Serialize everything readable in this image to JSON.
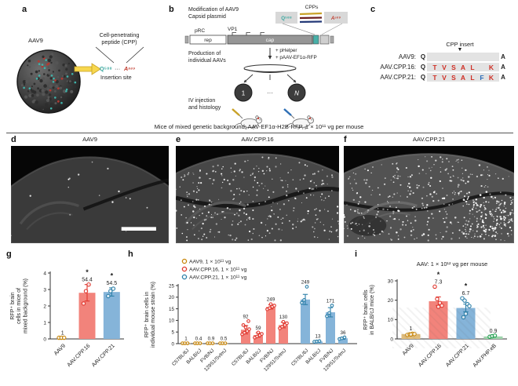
{
  "panels": {
    "a": {
      "letter": "a",
      "virus": "AAV9",
      "cpp": [
        "Cell-penetrating",
        "peptide (CPP)"
      ],
      "q": "Q⁵⁸⁸",
      "dots": "···",
      "a_res": "A⁵⁸⁹",
      "caption": "Insertion site"
    },
    "b": {
      "letter": "b",
      "step1": [
        "Modification of AAV9",
        "Capsid plasmid"
      ],
      "cpps": "CPPs",
      "q": "Q⁵⁸⁸",
      "a_res": "A⁵⁸⁹",
      "prc": "pRC",
      "vp1": "VP1",
      "rep": "rep",
      "cap": "cap",
      "helper": "+ pHelper",
      "aav_rfp": "+ pAAV-EF1α-RFP",
      "step2": [
        "Production of",
        "individual AAVs"
      ],
      "virus_1": "1",
      "virus_dots": "···",
      "virus_n": "N",
      "step3": [
        "IV injection",
        "and histology"
      ]
    },
    "c": {
      "letter": "c",
      "header": "CPP insert",
      "marker": "▼",
      "letter_colors": {
        "red": "#cf2e24",
        "blue": "#2b6cb8"
      },
      "rows": [
        {
          "name": "AAV9:",
          "left": "Q",
          "letters": [],
          "right": "A"
        },
        {
          "name": "AAV.CPP.16:",
          "left": "Q",
          "letters": [
            [
              "T",
              "red"
            ],
            [
              "V",
              "red"
            ],
            [
              "S",
              "red"
            ],
            [
              "A",
              "red"
            ],
            [
              "L",
              "red"
            ],
            [
              "",
              ""
            ],
            [
              "K",
              "red"
            ]
          ],
          "right": "A"
        },
        {
          "name": "AAV.CPP.21:",
          "left": "Q",
          "letters": [
            [
              "T",
              "red"
            ],
            [
              "V",
              "red"
            ],
            [
              "S",
              "red"
            ],
            [
              "A",
              "red"
            ],
            [
              "L",
              "red"
            ],
            [
              "F",
              "blue"
            ],
            [
              "K",
              "red"
            ]
          ],
          "right": "A"
        }
      ]
    },
    "def_title": "Mice of mixed genetic background; AAV-EF1α-H2B-RFP, 1 × 10¹¹ vg per mouse",
    "d": {
      "letter": "d",
      "title": "AAV9"
    },
    "e": {
      "letter": "e",
      "title": "AAV.CPP.16"
    },
    "f": {
      "letter": "f",
      "title": "AAV.CPP.21"
    }
  },
  "chart_data": [
    {
      "id": "g",
      "type": "bar",
      "letter": "g",
      "ylabel": "RFP⁺ brain\ncells in mice of\nmixed background (%)",
      "ylim": [
        0,
        4
      ],
      "yticks": [
        0,
        1,
        2,
        3,
        4
      ],
      "bars": [
        {
          "label": "AAV9",
          "value": 0,
          "fold": "1",
          "sig": "",
          "color": "#e0bd7d",
          "stroke": "#c8860a",
          "err": 0,
          "points": [
            0.07,
            0.07,
            0.07
          ]
        },
        {
          "label": "AAV.CPP.16",
          "value": 2.8,
          "fold": "54.4",
          "sig": "*",
          "color": "#f2837b",
          "stroke": "#e0372e",
          "err": 0.5,
          "points": [
            2.15,
            2.9,
            3.3
          ]
        },
        {
          "label": "AAV.CPP.21",
          "value": 2.85,
          "fold": "54.5",
          "sig": "*",
          "color": "#85b4d9",
          "stroke": "#2b7fa8",
          "err": 0.25,
          "points": [
            2.6,
            2.9,
            3.05
          ]
        }
      ]
    },
    {
      "id": "h",
      "type": "grouped-bar",
      "letter": "h",
      "ylabel": "RFP⁺ brain cells in\nindividual mouse strain (%)",
      "ylim": [
        0,
        25
      ],
      "yticks": [
        0,
        5,
        10,
        15,
        20,
        25
      ],
      "legend": [
        {
          "label": "AAV9, 1 × 10¹¹ vg",
          "color": "#c8860a"
        },
        {
          "label": "AAV.CPP.16, 1 × 10¹¹ vg",
          "color": "#e0372e"
        },
        {
          "label": "AAV.CPP.21, 1 × 10¹¹ vg",
          "color": "#2b7fa8"
        }
      ],
      "strains": [
        "C57BL/6J",
        "BALB/cJ",
        "FVB/NJ",
        "129S1/SvImJ"
      ],
      "groups": [
        {
          "name": "AAV9",
          "color": "#e0bd7d",
          "stroke": "#c8860a",
          "values": [
            0.1,
            0.06,
            0.09,
            0.06
          ],
          "folds": [
            "1",
            "0.4",
            "0.9",
            "0.5"
          ],
          "errs": [
            0,
            0,
            0,
            0
          ],
          "points": [
            [
              0.15,
              0.15,
              0.15
            ],
            [
              0.15,
              0.15,
              0.15
            ],
            [
              0.15,
              0.15,
              0.15
            ],
            [
              0.15,
              0.15,
              0.15
            ]
          ]
        },
        {
          "name": "AAV.CPP.16",
          "color": "#f2837b",
          "stroke": "#e0372e",
          "values": [
            6,
            3.7,
            15.8,
            8
          ],
          "folds": [
            "92",
            "59",
            "249",
            "130"
          ],
          "errs": [
            1.8,
            0.9,
            0.9,
            1.2
          ],
          "points": [
            [
              4,
              4.7,
              5.4,
              6.2,
              7,
              8,
              9.7
            ],
            [
              2.6,
              3.1,
              3.6,
              4.2,
              4.8
            ],
            [
              14.8,
              15.3,
              15.9,
              16.4,
              17
            ],
            [
              6.6,
              7.3,
              8,
              8.8,
              9.4
            ]
          ]
        },
        {
          "name": "AAV.CPP.21",
          "color": "#85b4d9",
          "stroke": "#2b7fa8",
          "values": [
            19,
            0.9,
            13.5,
            2.3
          ],
          "folds": [
            "249",
            "13",
            "171",
            "36"
          ],
          "errs": [
            2.2,
            0.2,
            2,
            0.4
          ],
          "points": [
            [
              17.6,
              18.8,
              24.5
            ],
            [
              0.8,
              0.95,
              1.1
            ],
            [
              11.8,
              13.2,
              16.4
            ],
            [
              2,
              2.3,
              2.7
            ]
          ]
        }
      ]
    },
    {
      "id": "i",
      "type": "bar",
      "letter": "i",
      "title": "AAV: 1 × 10¹² vg per mouse",
      "ylabel": "RFP⁺ brain cells\nin BALB/cJ mice (%)",
      "ylim": [
        0,
        30
      ],
      "yticks": [
        0,
        10,
        20,
        30
      ],
      "bars": [
        {
          "label": "AAV9",
          "value": 2.5,
          "fold": "1",
          "sig": "",
          "color": "#e0bd7d",
          "stroke": "#c8860a",
          "err": 0.4,
          "points": [
            2.1,
            2.4,
            2.7,
            2.5,
            2.3
          ]
        },
        {
          "label": "AAV.CPP.16",
          "value": 19.5,
          "fold": "7.3",
          "sig": "*",
          "color": "#f2837b",
          "stroke": "#e0372e",
          "err": 2.2,
          "points": [
            27,
            20.6,
            18.6,
            17.2,
            16.6
          ]
        },
        {
          "label": "AAV.CPP.21",
          "value": 16,
          "fold": "6.7",
          "sig": "*",
          "color": "#85b4d9",
          "stroke": "#2b7fa8",
          "err": 2,
          "points": [
            21,
            19.8,
            18,
            17,
            13,
            11.2
          ]
        },
        {
          "label": "AAV.PHP.eB",
          "value": 1.3,
          "fold": "0.9",
          "sig": "",
          "color": "#9fd4ac",
          "stroke": "#1f9e4e",
          "err": 0.25,
          "points": [
            1.1,
            1.4,
            1.7
          ]
        }
      ]
    }
  ]
}
